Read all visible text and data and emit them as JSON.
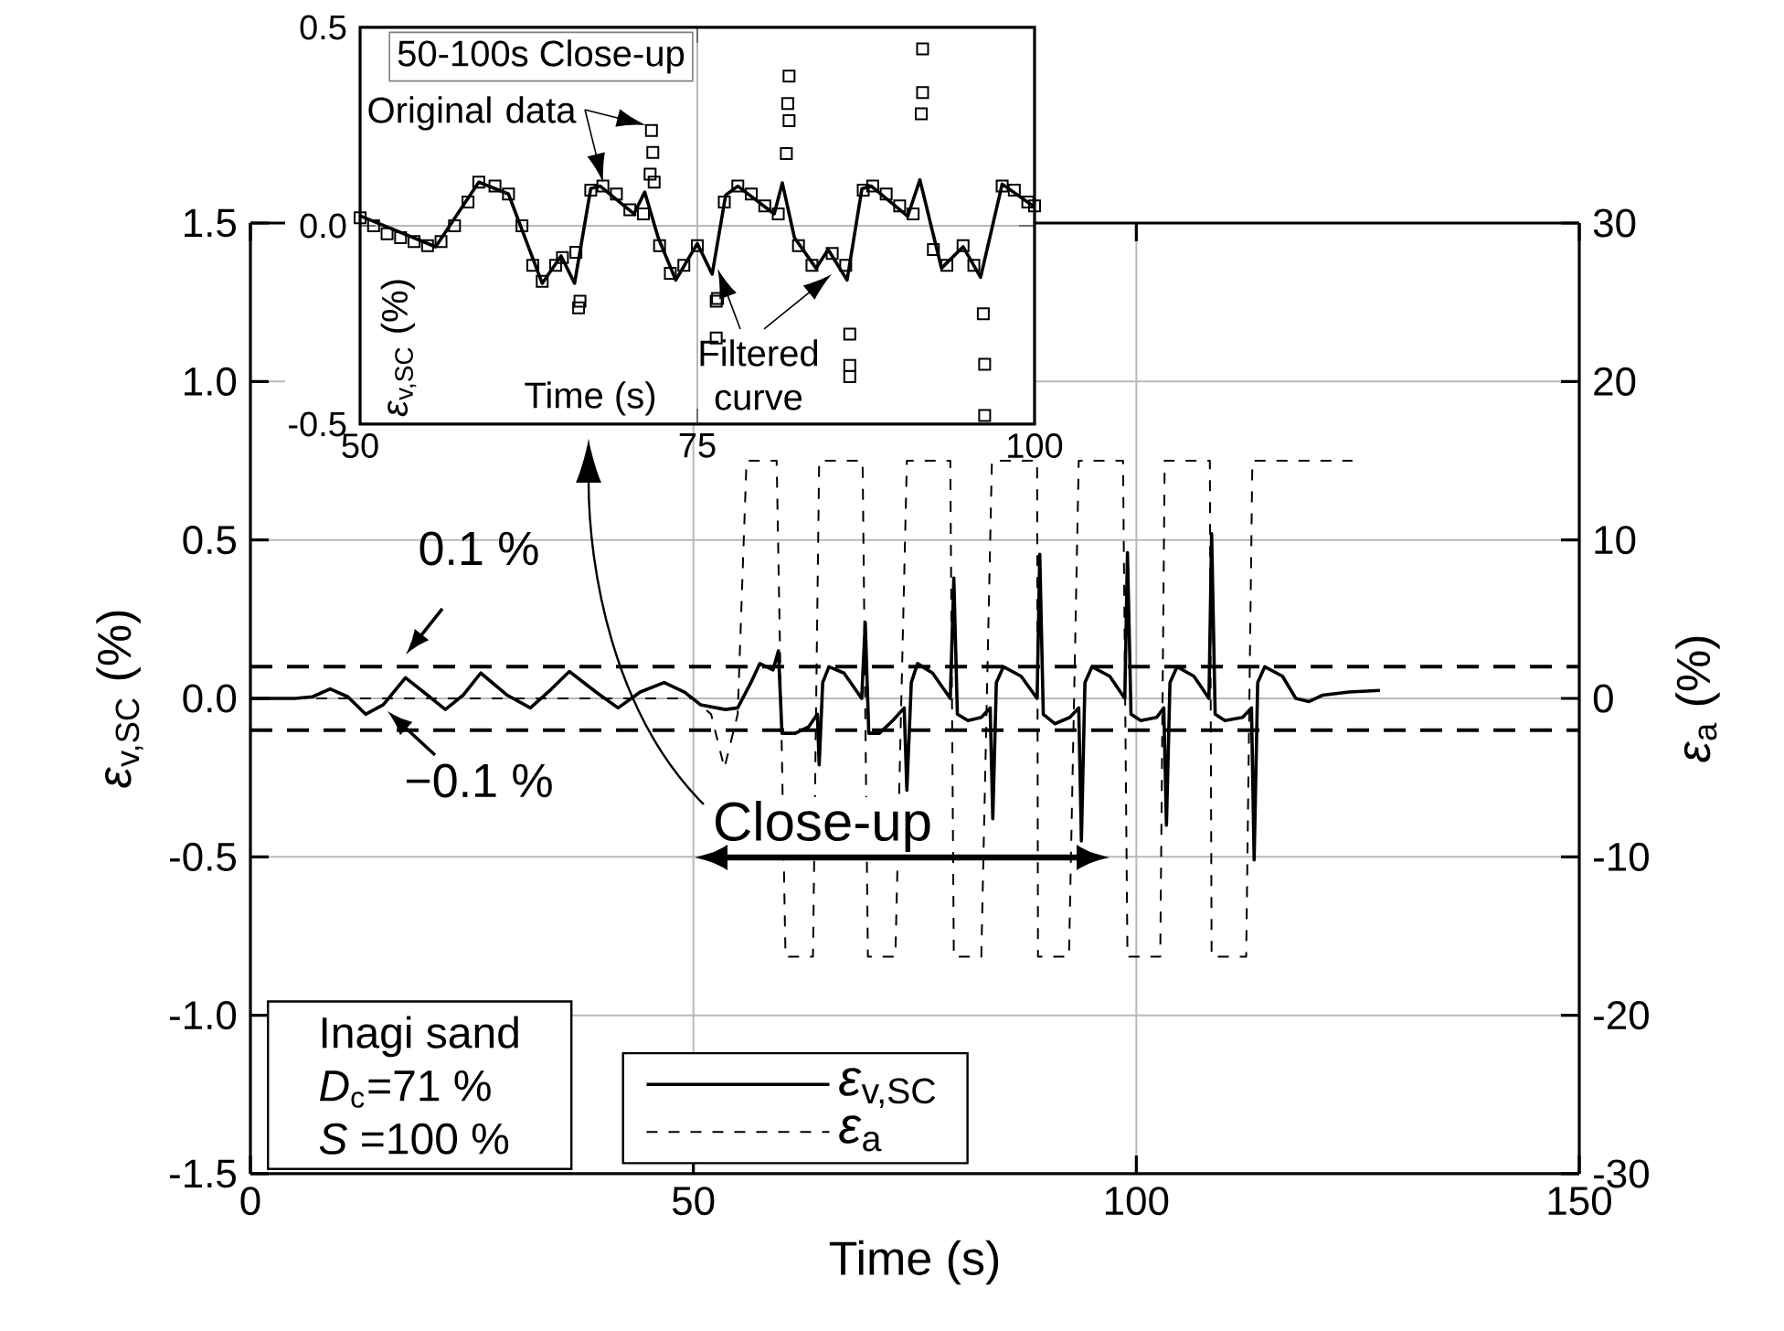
{
  "chart_data": [
    {
      "type": "line",
      "xlabel": "Time (s)",
      "ylabel": "*ε*$_{v,SC}$ (%)",
      "y2label": "*ε*$_{a}$ (%)",
      "xlim": [
        0,
        150
      ],
      "ylim": [
        -1.5,
        1.5
      ],
      "y2lim": [
        -30,
        30
      ],
      "xticks": [
        0,
        50,
        100,
        150
      ],
      "yticks": [
        -1.5,
        {
          "value": -1,
          "label": "-1.0"
        },
        -0.5,
        {
          "value": 0,
          "label": "0.0"
        },
        0.5,
        {
          "value": 1,
          "label": "1.0"
        },
        1.5
      ],
      "y2ticks": [
        -30,
        -20,
        -10,
        0,
        10,
        20,
        30
      ],
      "grid": true,
      "legend": "bottom",
      "series": [
        {
          "name": "*ε*$_{v,SC}$",
          "color": "#000000",
          "line_style": "solid",
          "x": [
            0,
            5,
            7,
            9,
            11,
            13,
            15,
            17.5,
            20,
            22,
            24,
            26,
            29,
            31.6,
            34,
            36,
            39,
            41.5,
            44,
            46.7,
            49,
            50.8,
            53.6,
            55,
            56.5,
            57.5,
            59,
            59.6,
            60,
            61.5,
            63,
            64,
            64.2,
            64.6,
            65.3,
            67,
            69,
            69.4,
            69.8,
            71,
            72.5,
            73.8,
            74.1,
            74.6,
            75.3,
            77,
            79,
            79.4,
            79.8,
            81,
            82.5,
            83.5,
            83.8,
            84.2,
            85,
            87,
            88.8,
            89.1,
            89.5,
            90.8,
            92.5,
            93.5,
            93.8,
            94.2,
            95,
            97,
            98.7,
            99,
            99.4,
            100.5,
            102.3,
            103.1,
            103.4,
            103.8,
            104.6,
            106.5,
            108.2,
            108.5,
            108.9,
            110,
            112,
            113,
            113.3,
            113.7,
            114.5,
            116.5,
            118,
            119.5,
            121,
            124,
            127.5
          ],
          "values": [
            0,
            0,
            0.005,
            0.03,
            0.005,
            -0.05,
            -0.02,
            0.065,
            0.01,
            -0.035,
            0.01,
            0.08,
            0.01,
            -0.03,
            0.03,
            0.085,
            0.02,
            -0.03,
            0.02,
            0.05,
            0.02,
            -0.02,
            -0.035,
            -0.03,
            0.05,
            0.11,
            0.09,
            0.15,
            -0.11,
            -0.11,
            -0.09,
            -0.05,
            -0.21,
            0.05,
            0.1,
            0.08,
            0,
            0.24,
            -0.11,
            -0.11,
            -0.07,
            -0.03,
            -0.29,
            0.05,
            0.11,
            0.08,
            0,
            0.38,
            -0.05,
            -0.07,
            -0.06,
            -0.03,
            -0.38,
            0.05,
            0.1,
            0.07,
            0,
            0.455,
            -0.05,
            -0.08,
            -0.06,
            -0.03,
            -0.45,
            0.05,
            0.1,
            0.07,
            0,
            0.46,
            -0.05,
            -0.07,
            -0.06,
            -0.03,
            -0.4,
            0.05,
            0.1,
            0.07,
            0,
            0.52,
            -0.05,
            -0.07,
            -0.06,
            -0.03,
            -0.51,
            0.05,
            0.1,
            0.07,
            0,
            -0.01,
            0.01,
            0.02,
            0.025
          ]
        },
        {
          "name": "*ε*$_{a}$",
          "color": "#000000",
          "line_style": "dashed",
          "axis": "y2",
          "x": [
            0,
            40,
            50,
            52,
            53.5,
            55,
            56,
            59.4,
            60.4,
            63.5,
            64.2,
            69.1,
            69.7,
            72.8,
            74.1,
            79,
            79.4,
            82.5,
            83.7,
            88.8,
            88.9,
            92.4,
            93.5,
            98.5,
            99,
            102.7,
            103.2,
            108.3,
            108.5,
            112.4,
            113.1,
            124.4
          ],
          "values": [
            0,
            0,
            0,
            -1,
            -4.4,
            -1,
            15,
            15,
            -16.3,
            -16.3,
            15,
            15,
            -16.3,
            -16.3,
            15,
            15,
            -16.3,
            -16.3,
            15,
            15,
            -16.3,
            -16.3,
            15,
            15,
            -16.3,
            -16.3,
            15,
            15,
            -16.3,
            -16.3,
            15,
            15
          ]
        }
      ],
      "ref_lines": [
        {
          "axis": "y",
          "value": 0.1,
          "label": "0.1 %",
          "line_style": "dashed",
          "color": "#000000"
        },
        {
          "axis": "y",
          "value": -0.1,
          "label": "−0.1 %",
          "line_style": "dashed",
          "color": "#000000"
        }
      ],
      "annotations": [
        "Close-up",
        "Inagi sand",
        "*D*$_{c}$=71 %",
        "*S* =100 %"
      ]
    },
    {
      "type": "line",
      "title": "50-100s Close-up",
      "xlabel": "Time (s)",
      "ylabel": "*ε*$_{v,SC}$ (%)",
      "xlim": [
        50,
        100
      ],
      "ylim": [
        -0.5,
        0.5
      ],
      "xticks": [
        50,
        75,
        100
      ],
      "yticks": [
        -0.5,
        {
          "value": 0,
          "label": "0.0"
        },
        0.5
      ],
      "grid": true,
      "annotations": [
        {
          "text": "Original data",
          "x": 71.6,
          "y": 0.24
        },
        {
          "text": "Filtered curve",
          "x": 76.1,
          "y": -0.122
        }
      ],
      "series": [
        {
          "type": "line",
          "color": "#000000",
          "x": [
            50,
            55.6,
            58.8,
            61,
            63.5,
            64.9,
            65.9,
            67.1,
            67.8,
            70.3,
            71.1,
            72.1,
            73.4,
            75,
            76.1,
            77.1,
            78,
            80.7,
            81.3,
            82.2,
            83.8,
            84.7,
            86.1,
            87.2,
            87.9,
            90.6,
            91.5,
            93.1,
            94.7,
            96,
            97.6,
            100
          ],
          "values": [
            0.025,
            -0.053,
            0.11,
            0.08,
            -0.145,
            -0.076,
            -0.145,
            0.094,
            0.1,
            0.03,
            0.085,
            -0.03,
            -0.137,
            -0.045,
            -0.122,
            0.077,
            0.1,
            0.03,
            0.108,
            -0.03,
            -0.107,
            -0.06,
            -0.137,
            0.093,
            0.1,
            0.024,
            0.116,
            -0.107,
            -0.053,
            -0.13,
            0.105,
            0.047
          ]
        },
        {
          "type": "scatter",
          "marker": "square",
          "color": "#000000",
          "x": [
            50,
            51,
            52,
            53,
            54,
            55,
            56,
            57,
            58,
            58.8,
            60,
            61,
            62,
            62.8,
            63.5,
            64.5,
            65,
            66,
            66.2,
            66.3,
            67.1,
            68,
            69,
            70,
            71,
            71.5,
            71.6,
            71.7,
            71.8,
            72.2,
            73,
            74,
            75,
            76.4,
            76.4,
            76.5,
            77,
            78,
            79,
            80,
            81,
            81.6,
            81.7,
            81.8,
            81.8,
            82.5,
            83.5,
            85,
            86,
            86.3,
            86.3,
            86.3,
            87.3,
            88,
            89,
            90,
            91,
            91.6,
            91.7,
            91.7,
            92.5,
            93.5,
            94.7,
            95.5,
            96.2,
            96.3,
            96.3,
            97.6,
            98.5,
            99.5,
            100
          ],
          "values": [
            0.02,
            0,
            -0.02,
            -0.03,
            -0.04,
            -0.05,
            -0.04,
            0,
            0.06,
            0.11,
            0.1,
            0.08,
            0,
            -0.1,
            -0.14,
            -0.1,
            -0.08,
            -0.067,
            -0.207,
            -0.19,
            0.09,
            0.1,
            0.08,
            0.04,
            0.03,
            0.13,
            0.24,
            0.185,
            0.11,
            -0.05,
            -0.12,
            -0.1,
            -0.05,
            -0.19,
            -0.283,
            -0.183,
            0.06,
            0.1,
            0.08,
            0.05,
            0.03,
            0.182,
            0.308,
            0.377,
            0.265,
            -0.05,
            -0.1,
            -0.07,
            -0.1,
            -0.273,
            -0.352,
            -0.38,
            0.09,
            0.1,
            0.08,
            0.05,
            0.03,
            0.282,
            0.446,
            0.336,
            -0.06,
            -0.1,
            -0.05,
            -0.1,
            -0.222,
            -0.349,
            -0.478,
            0.1,
            0.09,
            0.06,
            0.05
          ]
        }
      ]
    }
  ]
}
